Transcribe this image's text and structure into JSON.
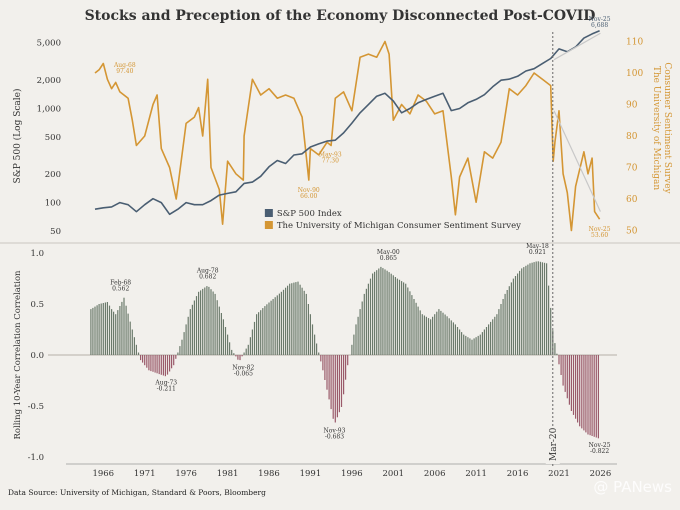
{
  "title": "Stocks and Preception of the Economy Disconnected Post-COVID",
  "source": "Data Source: University of Michigan, Standard & Poors, Bloomberg",
  "watermark": "@ PANews",
  "colors": {
    "sp500": "#4a5e72",
    "sentiment": "#d49634",
    "pos_bar": "#6b7a6b",
    "neg_bar": "#9a5a6a",
    "marker": "#666666"
  },
  "chart_data": [
    {
      "type": "line",
      "xlim": [
        1961.5,
        2028
      ],
      "marker": {
        "x": 2020.25,
        "label": "Mar-20"
      },
      "left_axis": {
        "label": "S&P 500 (Log Scale)",
        "scale": "log",
        "ticks": [
          "5,000",
          "2,000",
          "1,000",
          "500",
          "200",
          "100",
          "50"
        ],
        "tick_values": [
          5000,
          2000,
          1000,
          500,
          200,
          100,
          50
        ]
      },
      "right_axis": {
        "label": "The University of Michigan Consumer Sentiment Survey",
        "ticks": [
          "110",
          "100",
          "90",
          "80",
          "70",
          "60",
          "50"
        ],
        "tick_values": [
          110,
          100,
          90,
          80,
          70,
          60,
          50
        ]
      },
      "legend": {
        "position": "bottom-center",
        "items": [
          "S&P 500 Index",
          "The University of Michigan Consumer Sentiment Survey"
        ]
      },
      "series": [
        {
          "name": "S&P 500 Index",
          "axis": "left",
          "x": [
            1965,
            1966,
            1967,
            1968,
            1969,
            1970,
            1971,
            1972,
            1973,
            1974,
            1975,
            1976,
            1977,
            1978,
            1979,
            1980,
            1981,
            1982,
            1983,
            1984,
            1985,
            1986,
            1987,
            1988,
            1989,
            1990,
            1991,
            1992,
            1993,
            1994,
            1995,
            1996,
            1997,
            1998,
            1999,
            2000,
            2001,
            2002,
            2003,
            2004,
            2005,
            2006,
            2007,
            2008,
            2009,
            2010,
            2011,
            2012,
            2013,
            2014,
            2015,
            2016,
            2017,
            2018,
            2019,
            2020,
            2021,
            2022,
            2023,
            2024,
            2025,
            2025.9
          ],
          "y": [
            85,
            88,
            90,
            100,
            95,
            80,
            95,
            110,
            100,
            75,
            85,
            100,
            95,
            95,
            105,
            120,
            125,
            130,
            160,
            165,
            190,
            240,
            280,
            260,
            320,
            330,
            390,
            420,
            450,
            460,
            550,
            700,
            900,
            1100,
            1350,
            1450,
            1200,
            900,
            1000,
            1150,
            1250,
            1350,
            1450,
            950,
            1000,
            1150,
            1250,
            1400,
            1700,
            2000,
            2050,
            2200,
            2500,
            2650,
            3000,
            3400,
            4300,
            4000,
            4500,
            5600,
            6200,
            6688
          ]
        },
        {
          "name": "The University of Michigan Consumer Sentiment Survey",
          "axis": "right",
          "x": [
            1965,
            1965.5,
            1966,
            1966.5,
            1967,
            1967.5,
            1968,
            1969,
            1969.5,
            1970,
            1971,
            1972,
            1972.5,
            1973,
            1974,
            1974.8,
            1975,
            1976,
            1977,
            1977.5,
            1978,
            1978.6,
            1979,
            1980,
            1980.4,
            1981,
            1982,
            1982.9,
            1983,
            1984,
            1985,
            1986,
            1987,
            1988,
            1989,
            1990,
            1990.8,
            1991,
            1992,
            1993,
            1993.5,
            1994,
            1995,
            1996,
            1997,
            1998,
            1999,
            2000,
            2000.5,
            2001,
            2002,
            2003,
            2004,
            2005,
            2006,
            2007,
            2008,
            2008.5,
            2009,
            2010,
            2011,
            2012,
            2013,
            2014,
            2015,
            2016,
            2017,
            2018,
            2019,
            2020,
            2020.3,
            2020.5,
            2021,
            2021.5,
            2022,
            2022.5,
            2023,
            2024,
            2024.5,
            2025,
            2025.3,
            2025.9
          ],
          "y": [
            100,
            101,
            103,
            98,
            95,
            97,
            94,
            92,
            85,
            77,
            80,
            90,
            93,
            76,
            70,
            60,
            64,
            84,
            86,
            89,
            80,
            98,
            70,
            63,
            52,
            72,
            68,
            66,
            80,
            98,
            93,
            95,
            92,
            93,
            92,
            86,
            66,
            76,
            74,
            78,
            77,
            92,
            94,
            88,
            105,
            106,
            105,
            110,
            106,
            85,
            90,
            87,
            93,
            91,
            87,
            88,
            67,
            55,
            67,
            73,
            59,
            75,
            73,
            78,
            95,
            93,
            96,
            100,
            98,
            96,
            72,
            78,
            88,
            68,
            62,
            50,
            64,
            75,
            68,
            73,
            56,
            53.6
          ]
        }
      ],
      "annotations": [
        {
          "text": "Aug-68",
          "value": "97.40",
          "x": 1968.6,
          "axis": "right",
          "y": 97.4
        },
        {
          "text": "Nov-90",
          "value": "66.00",
          "x": 1990.8,
          "axis": "right",
          "y": 66
        },
        {
          "text": "May-93",
          "value": "77.30",
          "x": 1993.4,
          "axis": "right",
          "y": 77.3
        },
        {
          "text": "Nov-25",
          "value": "6,688",
          "x": 2025.9,
          "axis": "left",
          "y": 6688
        },
        {
          "text": "Nov-25",
          "value": "53.60",
          "x": 2025.9,
          "axis": "right",
          "y": 53.6
        }
      ]
    },
    {
      "type": "bar",
      "ylabel": "Rolling 10-Year Correlation Correlation",
      "ylim": [
        -1.05,
        1.05
      ],
      "y_ticks": [
        "1.0",
        "0.5",
        "0.0",
        "-0.5",
        "-1.0"
      ],
      "y_tick_values": [
        1.0,
        0.5,
        0.0,
        -0.5,
        -1.0
      ],
      "x_ticks": [
        "1966",
        "1971",
        "1976",
        "1981",
        "1986",
        "1991",
        "1996",
        "2001",
        "2006",
        "2011",
        "2016",
        "2021",
        "2026"
      ],
      "x_tick_values": [
        1966,
        1971,
        1976,
        1981,
        1986,
        1991,
        1996,
        2001,
        2006,
        2011,
        2016,
        2021,
        2026
      ],
      "profile_x": [
        1964.5,
        1965.5,
        1966.5,
        1967,
        1967.5,
        1968.5,
        1969.5,
        1970.5,
        1971.5,
        1972.5,
        1973.6,
        1974.5,
        1975.5,
        1976.5,
        1977.5,
        1978.6,
        1979.5,
        1980.5,
        1981.5,
        1982.4,
        1983.5,
        1984.5,
        1985.5,
        1986.5,
        1987.5,
        1988.5,
        1989.5,
        1990.5,
        1991.5,
        1992.5,
        1993.9,
        1994.8,
        1995.5,
        1996.5,
        1997.5,
        1998.5,
        1999.5,
        2000.4,
        2001.5,
        2002.5,
        2003.5,
        2004.5,
        2005.5,
        2006.5,
        2007.5,
        2008.5,
        2009.5,
        2010.5,
        2011.5,
        2012.5,
        2013.5,
        2014.5,
        2015.5,
        2016.5,
        2017.5,
        2018.4,
        2019.5,
        2020.3,
        2021.5,
        2022.5,
        2023.5,
        2024.5,
        2025.9
      ],
      "profile_y": [
        0.45,
        0.5,
        0.52,
        0.45,
        0.4,
        0.562,
        0.25,
        -0.05,
        -0.15,
        -0.18,
        -0.211,
        -0.1,
        0.15,
        0.45,
        0.62,
        0.682,
        0.6,
        0.35,
        0.05,
        -0.065,
        0.1,
        0.4,
        0.48,
        0.55,
        0.62,
        0.7,
        0.72,
        0.6,
        0.2,
        -0.15,
        -0.683,
        -0.5,
        -0.1,
        0.3,
        0.6,
        0.8,
        0.865,
        0.82,
        0.75,
        0.7,
        0.55,
        0.4,
        0.35,
        0.45,
        0.38,
        0.3,
        0.2,
        0.15,
        0.2,
        0.3,
        0.4,
        0.6,
        0.75,
        0.85,
        0.9,
        0.921,
        0.9,
        0.2,
        -0.3,
        -0.55,
        -0.7,
        -0.78,
        -0.822
      ],
      "annotations": [
        {
          "text": "Feb-68",
          "value": "0.562",
          "x": 1968.1,
          "y": 0.562
        },
        {
          "text": "Aug-73",
          "value": "-0.211",
          "x": 1973.6,
          "y": -0.211
        },
        {
          "text": "Aug-78",
          "value": "0.682",
          "x": 1978.6,
          "y": 0.682
        },
        {
          "text": "Nov-82",
          "value": "-0.065",
          "x": 1982.9,
          "y": -0.065
        },
        {
          "text": "Nov-93",
          "value": "-0.683",
          "x": 1993.9,
          "y": -0.683
        },
        {
          "text": "May-00",
          "value": "0.865",
          "x": 2000.4,
          "y": 0.865
        },
        {
          "text": "May-18",
          "value": "0.921",
          "x": 2018.4,
          "y": 0.921
        },
        {
          "text": "Nov-25",
          "value": "-0.822",
          "x": 2025.9,
          "y": -0.822
        }
      ]
    }
  ]
}
